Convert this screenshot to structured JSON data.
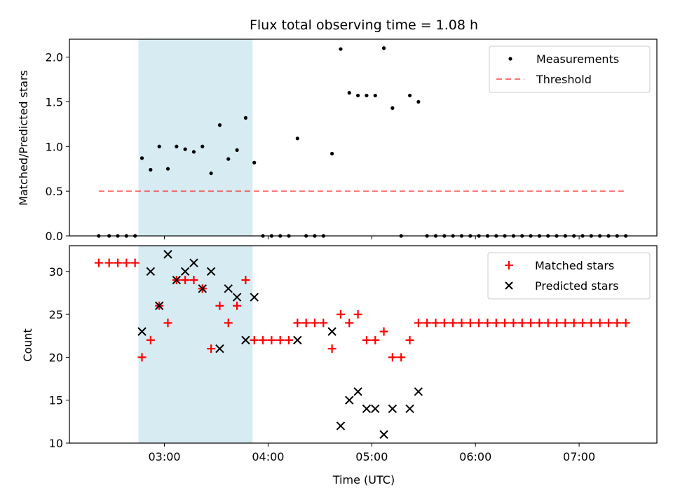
{
  "chart_data": {
    "title": "Flux total observing time = 1.08 h",
    "shaded_region": {
      "start": "02:45",
      "end": "03:51",
      "color": "#add8e6"
    },
    "x_axis": {
      "label": "Time (UTC)",
      "range": [
        "02:05",
        "07:45"
      ],
      "ticks": [
        "03:00",
        "04:00",
        "05:00",
        "06:00",
        "07:00"
      ]
    },
    "panels": [
      {
        "type": "scatter",
        "ylabel": "Matched/Predicted stars",
        "ylim": [
          0,
          2.2
        ],
        "yticks": [
          "0.0",
          "0.5",
          "1.0",
          "1.5",
          "2.0"
        ],
        "legend": {
          "position": "upper-right",
          "entries": [
            "Measurements",
            "Threshold"
          ]
        },
        "threshold": {
          "name": "Threshold",
          "value": 0.5,
          "x_start": "02:22",
          "x_end": "07:27",
          "color": "#ff0000",
          "style": "dashed"
        },
        "series": [
          {
            "name": "Measurements",
            "color": "#000000",
            "marker": "dot",
            "points": [
              [
                "02:22",
                0
              ],
              [
                "02:28",
                0
              ],
              [
                "02:33",
                0
              ],
              [
                "02:38",
                0
              ],
              [
                "02:43",
                0
              ],
              [
                "02:47",
                0.87
              ],
              [
                "02:52",
                0.74
              ],
              [
                "02:57",
                1.0
              ],
              [
                "03:02",
                0.75
              ],
              [
                "03:07",
                1.0
              ],
              [
                "03:12",
                0.97
              ],
              [
                "03:17",
                0.94
              ],
              [
                "03:22",
                1.0
              ],
              [
                "03:27",
                0.7
              ],
              [
                "03:32",
                1.24
              ],
              [
                "03:37",
                0.86
              ],
              [
                "03:42",
                0.96
              ],
              [
                "03:47",
                1.32
              ],
              [
                "03:52",
                0.82
              ],
              [
                "03:57",
                0
              ],
              [
                "04:02",
                0
              ],
              [
                "04:07",
                0
              ],
              [
                "04:12",
                0
              ],
              [
                "04:17",
                1.09
              ],
              [
                "04:22",
                0
              ],
              [
                "04:27",
                0
              ],
              [
                "04:32",
                0
              ],
              [
                "04:37",
                0.92
              ],
              [
                "04:42",
                2.09
              ],
              [
                "04:47",
                1.6
              ],
              [
                "04:52",
                1.57
              ],
              [
                "04:57",
                1.57
              ],
              [
                "05:02",
                1.57
              ],
              [
                "05:07",
                2.1
              ],
              [
                "05:12",
                1.43
              ],
              [
                "05:17",
                0
              ],
              [
                "05:22",
                1.57
              ],
              [
                "05:27",
                1.5
              ],
              [
                "05:32",
                0
              ],
              [
                "05:37",
                0
              ],
              [
                "05:42",
                0
              ],
              [
                "05:47",
                0
              ],
              [
                "05:52",
                0
              ],
              [
                "05:57",
                0
              ],
              [
                "06:02",
                0
              ],
              [
                "06:07",
                0
              ],
              [
                "06:12",
                0
              ],
              [
                "06:17",
                0
              ],
              [
                "06:22",
                0
              ],
              [
                "06:27",
                0
              ],
              [
                "06:32",
                0
              ],
              [
                "06:37",
                0
              ],
              [
                "06:42",
                0
              ],
              [
                "06:47",
                0
              ],
              [
                "06:52",
                0
              ],
              [
                "06:57",
                0
              ],
              [
                "07:02",
                0
              ],
              [
                "07:07",
                0
              ],
              [
                "07:12",
                0
              ],
              [
                "07:17",
                0
              ],
              [
                "07:22",
                0
              ],
              [
                "07:27",
                0
              ]
            ]
          }
        ]
      },
      {
        "type": "scatter",
        "ylabel": "Count",
        "ylim": [
          10,
          33
        ],
        "yticks": [
          "10",
          "15",
          "20",
          "25",
          "30"
        ],
        "legend": {
          "position": "upper-right",
          "entries": [
            "Matched stars",
            "Predicted stars"
          ]
        },
        "series": [
          {
            "name": "Matched stars",
            "color": "#ff0000",
            "marker": "plus",
            "points": [
              [
                "02:22",
                31
              ],
              [
                "02:28",
                31
              ],
              [
                "02:33",
                31
              ],
              [
                "02:38",
                31
              ],
              [
                "02:43",
                31
              ],
              [
                "02:47",
                20
              ],
              [
                "02:52",
                22
              ],
              [
                "02:57",
                26
              ],
              [
                "03:02",
                24
              ],
              [
                "03:07",
                29
              ],
              [
                "03:12",
                29
              ],
              [
                "03:17",
                29
              ],
              [
                "03:22",
                28
              ],
              [
                "03:27",
                21
              ],
              [
                "03:32",
                26
              ],
              [
                "03:37",
                24
              ],
              [
                "03:42",
                26
              ],
              [
                "03:47",
                29
              ],
              [
                "03:52",
                22
              ],
              [
                "03:57",
                22
              ],
              [
                "04:02",
                22
              ],
              [
                "04:07",
                22
              ],
              [
                "04:12",
                22
              ],
              [
                "04:17",
                24
              ],
              [
                "04:22",
                24
              ],
              [
                "04:27",
                24
              ],
              [
                "04:32",
                24
              ],
              [
                "04:37",
                21
              ],
              [
                "04:42",
                25
              ],
              [
                "04:47",
                24
              ],
              [
                "04:52",
                25
              ],
              [
                "04:57",
                22
              ],
              [
                "05:02",
                22
              ],
              [
                "05:07",
                23
              ],
              [
                "05:12",
                20
              ],
              [
                "05:17",
                20
              ],
              [
                "05:22",
                22
              ],
              [
                "05:27",
                24
              ],
              [
                "05:32",
                24
              ],
              [
                "05:37",
                24
              ],
              [
                "05:42",
                24
              ],
              [
                "05:47",
                24
              ],
              [
                "05:52",
                24
              ],
              [
                "05:57",
                24
              ],
              [
                "06:02",
                24
              ],
              [
                "06:07",
                24
              ],
              [
                "06:12",
                24
              ],
              [
                "06:17",
                24
              ],
              [
                "06:22",
                24
              ],
              [
                "06:27",
                24
              ],
              [
                "06:32",
                24
              ],
              [
                "06:37",
                24
              ],
              [
                "06:42",
                24
              ],
              [
                "06:47",
                24
              ],
              [
                "06:52",
                24
              ],
              [
                "06:57",
                24
              ],
              [
                "07:02",
                24
              ],
              [
                "07:07",
                24
              ],
              [
                "07:12",
                24
              ],
              [
                "07:17",
                24
              ],
              [
                "07:22",
                24
              ],
              [
                "07:27",
                24
              ]
            ]
          },
          {
            "name": "Predicted stars",
            "color": "#000000",
            "marker": "x",
            "points": [
              [
                "02:47",
                23
              ],
              [
                "02:52",
                30
              ],
              [
                "02:57",
                26
              ],
              [
                "03:02",
                32
              ],
              [
                "03:07",
                29
              ],
              [
                "03:12",
                30
              ],
              [
                "03:17",
                31
              ],
              [
                "03:22",
                28
              ],
              [
                "03:27",
                30
              ],
              [
                "03:32",
                21
              ],
              [
                "03:37",
                28
              ],
              [
                "03:42",
                27
              ],
              [
                "03:47",
                22
              ],
              [
                "03:52",
                27
              ],
              [
                "04:17",
                22
              ],
              [
                "04:37",
                23
              ],
              [
                "04:42",
                12
              ],
              [
                "04:47",
                15
              ],
              [
                "04:52",
                16
              ],
              [
                "04:57",
                14
              ],
              [
                "05:02",
                14
              ],
              [
                "05:07",
                11
              ],
              [
                "05:12",
                14
              ],
              [
                "05:22",
                14
              ],
              [
                "05:27",
                16
              ]
            ]
          }
        ]
      }
    ]
  }
}
